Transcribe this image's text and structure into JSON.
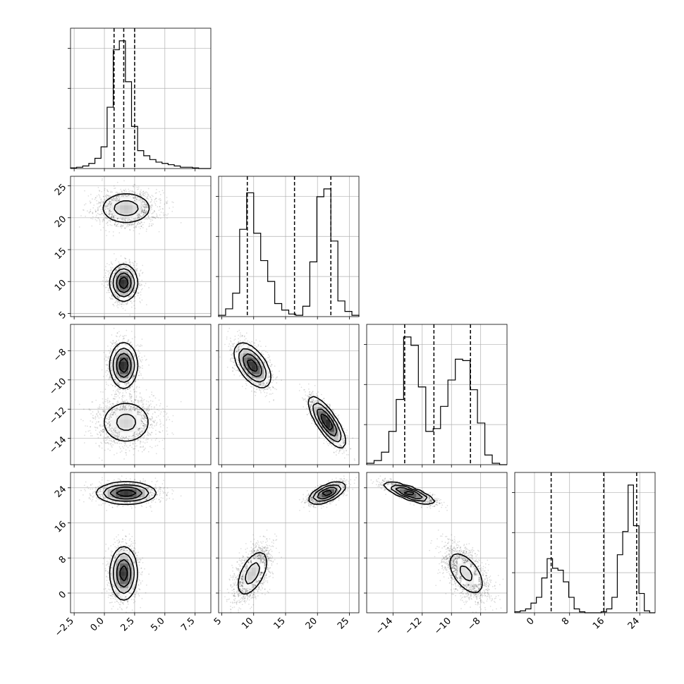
{
  "chart_data": {
    "type": "corner",
    "parameters": [
      {
        "range": [
          -2.8,
          8.8
        ],
        "ticks": [
          -2.5,
          0.0,
          2.5,
          5.0,
          7.5
        ],
        "tick_labels": [
          "−2.5",
          "0.0",
          "2.5",
          "5.0",
          "7.5"
        ],
        "quantiles": [
          0.8,
          1.6,
          2.5
        ],
        "show_tick_labels": true
      },
      {
        "range": [
          4.5,
          26.5
        ],
        "ticks": [
          5,
          10,
          15,
          20,
          25
        ],
        "tick_labels": [
          "5",
          "10",
          "15",
          "20",
          "25"
        ],
        "quantiles": [
          9.0,
          16.4,
          22.1
        ],
        "show_tick_labels": true
      },
      {
        "range": [
          -15.8,
          -6.2
        ],
        "ticks": [
          -14,
          -12,
          -10,
          -8
        ],
        "tick_labels": [
          "−14",
          "−12",
          "−10",
          "−8"
        ],
        "quantiles": [
          -13.2,
          -11.2,
          -8.7
        ],
        "show_tick_labels": true
      },
      {
        "range": [
          -4.5,
          27.5
        ],
        "ticks": [
          0,
          8,
          16,
          24
        ],
        "tick_labels": [
          "0",
          "8",
          "16",
          "24"
        ],
        "quantiles": [
          3.8,
          15.8,
          23.3
        ],
        "show_tick_labels": true
      }
    ],
    "histograms": [
      {
        "param": 0,
        "counts": [
          0.5,
          1,
          2,
          4,
          8,
          17,
          48,
          93,
          100,
          68,
          33,
          14,
          10,
          7,
          5,
          4,
          3,
          2,
          1,
          1,
          0.5,
          0,
          0
        ]
      },
      {
        "param": 1,
        "counts": [
          1,
          6,
          18,
          67,
          95,
          64,
          43,
          27,
          10,
          5,
          2,
          1,
          8,
          42,
          92,
          98,
          58,
          12,
          4,
          1
        ]
      },
      {
        "param": 2,
        "counts": [
          1,
          3,
          9,
          24,
          47,
          92,
          86,
          56,
          24,
          26,
          42,
          61,
          76,
          75,
          54,
          30,
          7,
          1,
          0
        ]
      },
      {
        "param": 3,
        "counts": [
          0.5,
          1,
          2,
          5,
          8,
          18,
          28,
          23,
          22,
          16,
          8,
          2,
          0.5,
          0,
          0,
          0,
          0.5,
          2,
          8,
          30,
          42,
          66,
          45,
          10,
          1,
          0
        ]
      }
    ],
    "clusters": [
      {
        "weight": 0.52,
        "mean": [
          1.6,
          9.8,
          -9.0,
          4.5
        ],
        "sd": [
          0.55,
          1.4,
          0.75,
          3.0
        ]
      },
      {
        "weight": 0.48,
        "mean": [
          1.8,
          21.5,
          -12.9,
          22.8
        ],
        "sd": [
          1.2,
          1.4,
          0.85,
          1.2
        ]
      }
    ]
  }
}
